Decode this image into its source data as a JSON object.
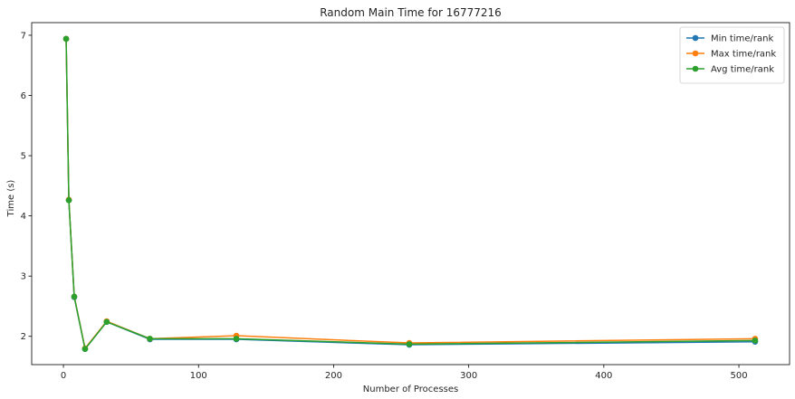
{
  "chart_data": {
    "type": "line",
    "title": "Random Main Time for 16777216",
    "xlabel": "Number of Processes",
    "ylabel": "Time (s)",
    "x": [
      2,
      4,
      8,
      16,
      32,
      64,
      128,
      256,
      512
    ],
    "xlim": [
      -23.5,
      537.5
    ],
    "ylim": [
      1.53,
      7.21
    ],
    "xticks": [
      0,
      100,
      200,
      300,
      400,
      500
    ],
    "yticks": [
      2,
      3,
      4,
      5,
      6,
      7
    ],
    "grid": false,
    "legend_position": "top-right",
    "series": [
      {
        "name": "Min time/rank",
        "color": "#1f77b4",
        "values": [
          6.94,
          4.26,
          2.65,
          1.79,
          2.24,
          1.95,
          1.95,
          1.86,
          1.91
        ]
      },
      {
        "name": "Max time/rank",
        "color": "#ff7f0e",
        "values": [
          6.94,
          4.27,
          2.66,
          1.8,
          2.25,
          1.96,
          2.01,
          1.89,
          1.96
        ]
      },
      {
        "name": "Avg time/rank",
        "color": "#2ca02c",
        "values": [
          6.94,
          4.26,
          2.66,
          1.79,
          2.24,
          1.96,
          1.96,
          1.87,
          1.93
        ]
      }
    ]
  }
}
